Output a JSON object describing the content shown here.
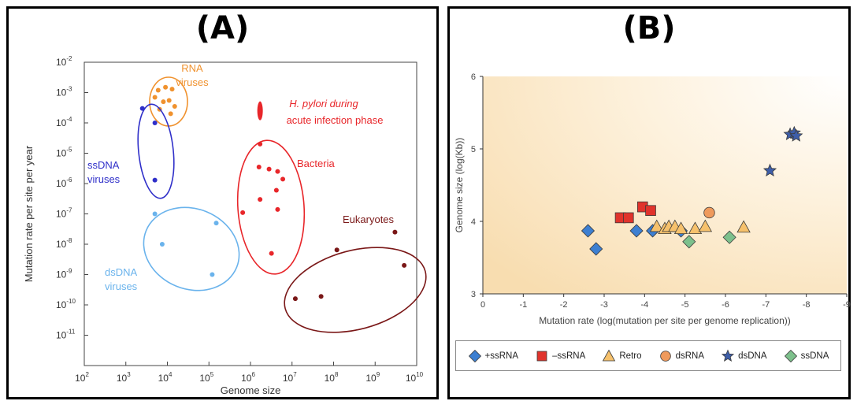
{
  "panel_a": {
    "label": "(A)",
    "chart_data": {
      "type": "scatter",
      "xlabel": "Genome size",
      "ylabel": "Mutation rate per site per year",
      "xscale": "log",
      "yscale": "log",
      "xlim": [
        100,
        10000000000
      ],
      "ylim": [
        1e-12,
        0.01
      ],
      "xticks": [
        {
          "value": 100,
          "base": "10",
          "exp": "2"
        },
        {
          "value": 1000,
          "base": "10",
          "exp": "3"
        },
        {
          "value": 10000,
          "base": "10",
          "exp": "4"
        },
        {
          "value": 100000,
          "base": "10",
          "exp": "5"
        },
        {
          "value": 1000000,
          "base": "10",
          "exp": "6"
        },
        {
          "value": 10000000,
          "base": "10",
          "exp": "7"
        },
        {
          "value": 100000000,
          "base": "10",
          "exp": "8"
        },
        {
          "value": 1000000000,
          "base": "10",
          "exp": "9"
        },
        {
          "value": 10000000000,
          "base": "10",
          "exp": "10"
        }
      ],
      "yticks": [
        {
          "value": 1e-11,
          "base": "10",
          "exp": "-11"
        },
        {
          "value": 1e-10,
          "base": "10",
          "exp": "-10"
        },
        {
          "value": 1e-09,
          "base": "10",
          "exp": "-9"
        },
        {
          "value": 1e-08,
          "base": "10",
          "exp": "-8"
        },
        {
          "value": 1e-07,
          "base": "10",
          "exp": "-7"
        },
        {
          "value": 1e-06,
          "base": "10",
          "exp": "-6"
        },
        {
          "value": 1e-05,
          "base": "10",
          "exp": "-5"
        },
        {
          "value": 0.0001,
          "base": "10",
          "exp": "-4"
        },
        {
          "value": 0.001,
          "base": "10",
          "exp": "-3"
        },
        {
          "value": 0.01,
          "base": "10",
          "exp": "-2"
        }
      ],
      "groups": [
        {
          "key": "rna",
          "labels": [
            "RNA",
            "viruses"
          ],
          "color": "#f0922e",
          "points": [
            [
              6000,
              0.0012
            ],
            [
              9000,
              0.0015
            ],
            [
              13000,
              0.0013
            ],
            [
              5000,
              0.0007
            ],
            [
              8000,
              0.0005
            ],
            [
              11000,
              0.00055
            ],
            [
              15000,
              0.00035
            ],
            [
              6500,
              0.00028
            ],
            [
              12000,
              0.0002
            ]
          ]
        },
        {
          "key": "ssdna",
          "labels": [
            "ssDNA",
            "viruses"
          ],
          "color": "#2f2fc9",
          "points": [
            [
              2500,
              0.0003
            ],
            [
              5000,
              0.0001
            ],
            [
              5000,
              1.3e-06
            ]
          ]
        },
        {
          "key": "dsdna",
          "labels": [
            "dsDNA",
            "viruses"
          ],
          "color": "#6ab3ec",
          "points": [
            [
              5000,
              1e-07
            ],
            [
              7500,
              1e-08
            ],
            [
              150000,
              5e-08
            ],
            [
              120000,
              1e-09
            ]
          ]
        },
        {
          "key": "bacteria",
          "labels": [
            "Bacteria"
          ],
          "color": "#e8262a",
          "points": [
            [
              1700000,
              2e-05
            ],
            [
              1600000,
              3.5e-06
            ],
            [
              2800000,
              3e-06
            ],
            [
              4500000,
              2.5e-06
            ],
            [
              6000000,
              1.4e-06
            ],
            [
              4200000,
              6e-07
            ],
            [
              1700000,
              3e-07
            ],
            [
              4500000,
              1.4e-07
            ],
            [
              650000,
              1.1e-07
            ],
            [
              3200000,
              5e-09
            ]
          ]
        },
        {
          "key": "eukaryotes",
          "labels": [
            "Eukaryotes"
          ],
          "color": "#7a1717",
          "points": [
            [
              12000000,
              1.6e-10
            ],
            [
              50000000,
              1.9e-10
            ],
            [
              120000000,
              6.5e-09
            ],
            [
              3000000000,
              2.5e-08
            ],
            [
              5000000000,
              2e-09
            ]
          ]
        }
      ],
      "annotation": {
        "color": "#e8262a",
        "lines": [
          "H. pylori during",
          "acute infection phase"
        ],
        "point": [
          1700000,
          0.00025
        ]
      }
    }
  },
  "panel_b": {
    "label": "(B)",
    "chart_data": {
      "type": "scatter",
      "xlabel": "Mutation rate (log(mutation per site per genome replication))",
      "ylabel": "Genome size (log(Kb))",
      "xlim": [
        0,
        -9
      ],
      "ylim": [
        3,
        6
      ],
      "xticks": [
        "0",
        "-1",
        "-2",
        "-3",
        "-4",
        "-5",
        "-6",
        "-7",
        "-8",
        "-9"
      ],
      "yticks": [
        "3",
        "4",
        "5",
        "6"
      ],
      "legend_position": "bottom",
      "series": [
        {
          "name": "+ssRNA",
          "marker": "diamond",
          "color": "#3d7fd1",
          "points": [
            [
              -2.6,
              3.87
            ],
            [
              -2.8,
              3.62
            ],
            [
              -3.8,
              3.87
            ],
            [
              -4.2,
              3.87
            ],
            [
              -4.9,
              3.87
            ]
          ]
        },
        {
          "name": "–ssRNA",
          "marker": "square",
          "color": "#e0332c",
          "points": [
            [
              -3.4,
              4.05
            ],
            [
              -3.6,
              4.05
            ],
            [
              -3.95,
              4.2
            ],
            [
              -4.15,
              4.15
            ]
          ]
        },
        {
          "name": "Retro",
          "marker": "triangle",
          "color": "#f6c16c",
          "points": [
            [
              -4.3,
              3.93
            ],
            [
              -4.5,
              3.9
            ],
            [
              -4.6,
              3.93
            ],
            [
              -4.75,
              3.93
            ],
            [
              -4.9,
              3.9
            ],
            [
              -5.25,
              3.9
            ],
            [
              -5.5,
              3.93
            ],
            [
              -6.45,
              3.92
            ]
          ]
        },
        {
          "name": "dsRNA",
          "marker": "circle",
          "color": "#ef9a5c",
          "points": [
            [
              -5.6,
              4.12
            ]
          ]
        },
        {
          "name": "dsDNA",
          "marker": "star",
          "color": "#3e5ea8",
          "points": [
            [
              -7.1,
              4.7
            ],
            [
              -7.6,
              5.2
            ],
            [
              -7.7,
              5.22
            ],
            [
              -7.75,
              5.18
            ]
          ]
        },
        {
          "name": "ssDNA",
          "marker": "diamond",
          "color": "#7dc08c",
          "points": [
            [
              -5.1,
              3.72
            ],
            [
              -6.1,
              3.78
            ]
          ]
        }
      ]
    }
  }
}
